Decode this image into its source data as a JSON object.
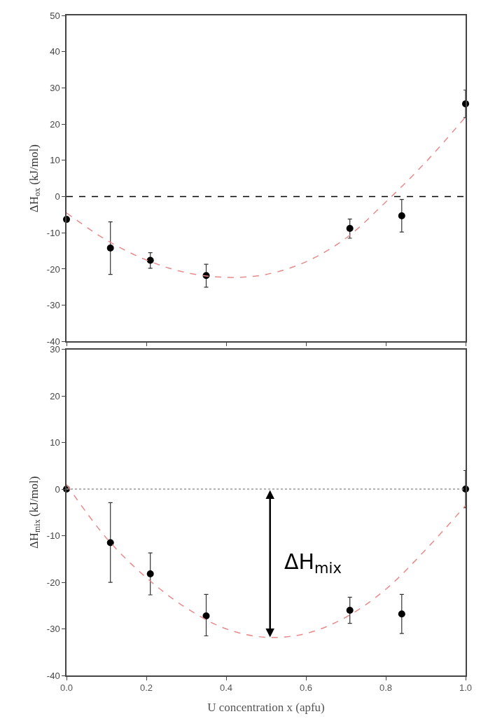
{
  "chart_data": [
    {
      "type": "scatter",
      "ylabel": "ΔH$_{ox}$ (kJ/mol)",
      "xlim": [
        0,
        1
      ],
      "xticks": [
        {
          "value": 0,
          "label": null
        },
        {
          "value": 0.2,
          "label": null
        },
        {
          "value": 0.4,
          "label": null
        },
        {
          "value": 0.6,
          "label": null
        },
        {
          "value": 0.8,
          "label": null
        },
        {
          "value": 1,
          "label": null
        }
      ],
      "ylim": [
        -40,
        50
      ],
      "yticks": [
        -40,
        -30,
        -20,
        -10,
        0,
        10,
        20,
        30,
        40,
        50
      ],
      "tick_labels": "y",
      "series": [
        {
          "color": "#000000",
          "marker": "circle",
          "x": [
            0,
            0.11,
            0.21,
            0.35,
            0.71,
            0.84,
            1.0
          ],
          "values": [
            -6.3,
            -14.2,
            -17.6,
            -21.8,
            -8.8,
            -5.3,
            25.6
          ],
          "errors": [
            null,
            [
              -21.5,
              -7
            ],
            [
              -19.8,
              -15.5
            ],
            [
              -25,
              -18.7
            ],
            [
              -11.5,
              -6.2
            ],
            [
              -9.8,
              -0.8
            ],
            3.8
          ]
        },
        {
          "type": "line",
          "color": "#e88a8a",
          "line_style": "dashed",
          "marker": "none",
          "x": [
            0,
            0.1,
            0.2,
            0.3,
            0.4,
            0.5,
            0.6,
            0.7,
            0.8,
            0.9,
            1.0
          ],
          "values": [
            -4.5,
            -12,
            -17.5,
            -21,
            -22.3,
            -21.5,
            -18,
            -11.5,
            -1.5,
            9.5,
            22
          ]
        }
      ],
      "ref_lines": [
        {
          "axis": "y",
          "value": 0,
          "color": "#000000",
          "line_style": "dashed"
        }
      ]
    },
    {
      "type": "scatter",
      "xlabel": "U concentration x (apfu)",
      "ylabel": "ΔH$_{mix}$ (kJ/mol)",
      "xlim": [
        0,
        1
      ],
      "xticks": [
        {
          "value": 0,
          "label": "0.0"
        },
        0.2,
        0.4,
        0.6,
        0.8,
        {
          "value": 1,
          "label": "1.0"
        }
      ],
      "ylim": [
        -40,
        30
      ],
      "yticks": [
        -40,
        -30,
        -20,
        -10,
        0,
        10,
        20,
        30
      ],
      "series": [
        {
          "color": "#000000",
          "marker": "circle",
          "x": [
            0,
            0.11,
            0.21,
            0.35,
            0.71,
            0.84,
            1.0
          ],
          "values": [
            0,
            -11.5,
            -18.2,
            -27.2,
            -26,
            -26.8,
            0
          ],
          "errors": [
            null,
            [
              -20,
              -2.9
            ],
            [
              -22.7,
              -13.7
            ],
            [
              -31.5,
              -22.6
            ],
            [
              -28.8,
              -23.2
            ],
            [
              -31,
              -22.6
            ],
            4
          ]
        },
        {
          "type": "line",
          "color": "#e88a8a",
          "line_style": "dashed",
          "marker": "none",
          "x": [
            0,
            0.1,
            0.2,
            0.3,
            0.4,
            0.5,
            0.6,
            0.7,
            0.8,
            0.9,
            1.0
          ],
          "values": [
            1,
            -10.5,
            -19,
            -25.5,
            -30,
            -31.8,
            -31,
            -27.5,
            -21.5,
            -13,
            -3.5
          ]
        }
      ],
      "ref_lines": [
        {
          "axis": "y",
          "value": 0,
          "color": "#999999",
          "line_style": "dotted"
        }
      ],
      "annotations": [
        "ΔH$_{mix}$"
      ]
    }
  ]
}
